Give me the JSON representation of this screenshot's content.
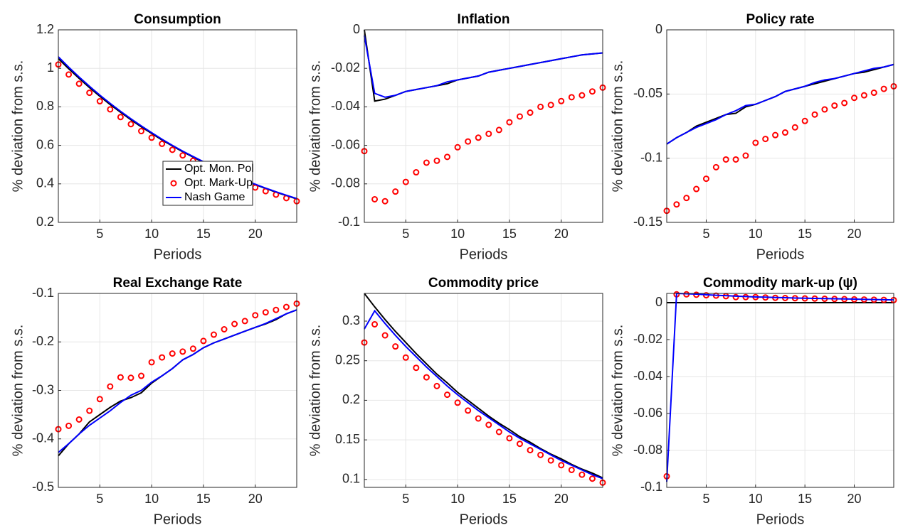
{
  "chart_data": [
    {
      "type": "line",
      "title": "Consumption",
      "xlabel": "Periods",
      "ylabel": "% deviation from s.s.",
      "x": [
        1,
        2,
        3,
        4,
        5,
        6,
        7,
        8,
        9,
        10,
        11,
        12,
        13,
        14,
        15,
        16,
        17,
        18,
        19,
        20,
        21,
        22,
        23,
        24
      ],
      "xlim": [
        1,
        24
      ],
      "xticks": [
        5,
        10,
        15,
        20
      ],
      "ylim": [
        0.2,
        1.2
      ],
      "yticks": [
        0.2,
        0.4,
        0.6,
        0.8,
        1,
        1.2
      ],
      "grid": true,
      "legend": "lower right",
      "series": [
        {
          "name": "Opt. Mon. Pol",
          "color": "#000000",
          "mode": "line",
          "values": [
            1.05,
            0.998,
            0.948,
            0.9,
            0.855,
            0.812,
            0.772,
            0.733,
            0.696,
            0.662,
            0.628,
            0.597,
            0.567,
            0.539,
            0.512,
            0.486,
            0.462,
            0.439,
            0.417,
            0.396,
            0.376,
            0.357,
            0.339,
            0.322
          ]
        },
        {
          "name": "Opt. Mark-Up",
          "color": "#ff0000",
          "mode": "markers",
          "values": [
            1.02,
            0.968,
            0.92,
            0.873,
            0.829,
            0.787,
            0.747,
            0.71,
            0.674,
            0.64,
            0.608,
            0.577,
            0.548,
            0.52,
            0.494,
            0.469,
            0.445,
            0.423,
            0.401,
            0.381,
            0.362,
            0.344,
            0.326,
            0.31
          ]
        },
        {
          "name": "Nash Game",
          "color": "#0000ff",
          "mode": "line",
          "values": [
            1.06,
            1.006,
            0.955,
            0.907,
            0.861,
            0.818,
            0.777,
            0.738,
            0.701,
            0.666,
            0.632,
            0.6,
            0.57,
            0.542,
            0.515,
            0.489,
            0.465,
            0.441,
            0.419,
            0.398,
            0.378,
            0.359,
            0.341,
            0.324
          ]
        }
      ]
    },
    {
      "type": "line",
      "title": "Inflation",
      "xlabel": "Periods",
      "ylabel": "% deviation from s.s.",
      "x": [
        1,
        2,
        3,
        4,
        5,
        6,
        7,
        8,
        9,
        10,
        11,
        12,
        13,
        14,
        15,
        16,
        17,
        18,
        19,
        20,
        21,
        22,
        23,
        24
      ],
      "xlim": [
        1,
        24
      ],
      "xticks": [
        5,
        10,
        15,
        20
      ],
      "ylim": [
        -0.1,
        0
      ],
      "yticks": [
        -0.1,
        -0.08,
        -0.06,
        -0.04,
        -0.02,
        0
      ],
      "grid": true,
      "series": [
        {
          "color": "#000000",
          "mode": "line",
          "values": [
            0,
            -0.037,
            -0.036,
            -0.034,
            -0.032,
            -0.031,
            -0.03,
            -0.029,
            -0.028,
            -0.026,
            -0.025,
            -0.024,
            -0.022,
            -0.021,
            -0.02,
            -0.019,
            -0.018,
            -0.017,
            -0.016,
            -0.015,
            -0.014,
            -0.013,
            -0.0125,
            -0.012
          ]
        },
        {
          "color": "#ff0000",
          "mode": "markers",
          "values": [
            -0.063,
            -0.088,
            -0.089,
            -0.084,
            -0.079,
            -0.074,
            -0.069,
            -0.068,
            -0.066,
            -0.061,
            -0.058,
            -0.056,
            -0.054,
            -0.052,
            -0.048,
            -0.045,
            -0.043,
            -0.04,
            -0.039,
            -0.037,
            -0.035,
            -0.034,
            -0.032,
            -0.03
          ]
        },
        {
          "color": "#0000ff",
          "mode": "line",
          "values": [
            -0.003,
            -0.033,
            -0.035,
            -0.034,
            -0.032,
            -0.031,
            -0.03,
            -0.029,
            -0.027,
            -0.026,
            -0.025,
            -0.024,
            -0.022,
            -0.021,
            -0.02,
            -0.019,
            -0.018,
            -0.017,
            -0.016,
            -0.015,
            -0.014,
            -0.013,
            -0.0125,
            -0.012
          ]
        }
      ]
    },
    {
      "type": "line",
      "title": "Policy rate",
      "xlabel": "Periods",
      "ylabel": "% deviation from s.s.",
      "x": [
        1,
        2,
        3,
        4,
        5,
        6,
        7,
        8,
        9,
        10,
        11,
        12,
        13,
        14,
        15,
        16,
        17,
        18,
        19,
        20,
        21,
        22,
        23,
        24
      ],
      "xlim": [
        1,
        24
      ],
      "xticks": [
        5,
        10,
        15,
        20
      ],
      "ylim": [
        -0.15,
        0
      ],
      "yticks": [
        -0.15,
        -0.1,
        -0.05,
        0
      ],
      "grid": true,
      "series": [
        {
          "color": "#000000",
          "mode": "line",
          "values": [
            -0.089,
            -0.084,
            -0.08,
            -0.075,
            -0.072,
            -0.069,
            -0.066,
            -0.065,
            -0.06,
            -0.058,
            -0.055,
            -0.052,
            -0.048,
            -0.046,
            -0.044,
            -0.042,
            -0.04,
            -0.038,
            -0.036,
            -0.034,
            -0.033,
            -0.031,
            -0.029,
            -0.027
          ]
        },
        {
          "color": "#ff0000",
          "mode": "markers",
          "values": [
            -0.141,
            -0.136,
            -0.131,
            -0.124,
            -0.116,
            -0.107,
            -0.101,
            -0.101,
            -0.098,
            -0.088,
            -0.085,
            -0.082,
            -0.08,
            -0.076,
            -0.071,
            -0.066,
            -0.062,
            -0.059,
            -0.057,
            -0.053,
            -0.051,
            -0.049,
            -0.046,
            -0.044
          ]
        },
        {
          "color": "#0000ff",
          "mode": "line",
          "values": [
            -0.089,
            -0.084,
            -0.08,
            -0.076,
            -0.073,
            -0.07,
            -0.066,
            -0.063,
            -0.059,
            -0.058,
            -0.055,
            -0.052,
            -0.048,
            -0.046,
            -0.044,
            -0.041,
            -0.039,
            -0.038,
            -0.036,
            -0.034,
            -0.032,
            -0.03,
            -0.029,
            -0.027
          ]
        }
      ]
    },
    {
      "type": "line",
      "title": "Real Exchange Rate",
      "xlabel": "Periods",
      "ylabel": "% deviation from s.s.",
      "x": [
        1,
        2,
        3,
        4,
        5,
        6,
        7,
        8,
        9,
        10,
        11,
        12,
        13,
        14,
        15,
        16,
        17,
        18,
        19,
        20,
        21,
        22,
        23,
        24
      ],
      "xlim": [
        1,
        24
      ],
      "xticks": [
        5,
        10,
        15,
        20
      ],
      "ylim": [
        -0.5,
        -0.1
      ],
      "yticks": [
        -0.5,
        -0.4,
        -0.3,
        -0.2,
        -0.1
      ],
      "grid": true,
      "series": [
        {
          "color": "#000000",
          "mode": "line",
          "values": [
            -0.435,
            -0.41,
            -0.39,
            -0.365,
            -0.35,
            -0.335,
            -0.322,
            -0.315,
            -0.305,
            -0.285,
            -0.27,
            -0.255,
            -0.237,
            -0.226,
            -0.212,
            -0.202,
            -0.194,
            -0.186,
            -0.178,
            -0.17,
            -0.163,
            -0.154,
            -0.142,
            -0.134
          ]
        },
        {
          "color": "#ff0000",
          "mode": "markers",
          "values": [
            -0.38,
            -0.373,
            -0.36,
            -0.342,
            -0.318,
            -0.292,
            -0.273,
            -0.274,
            -0.27,
            -0.242,
            -0.232,
            -0.224,
            -0.22,
            -0.214,
            -0.198,
            -0.185,
            -0.174,
            -0.163,
            -0.157,
            -0.145,
            -0.139,
            -0.134,
            -0.128,
            -0.121
          ]
        },
        {
          "color": "#0000ff",
          "mode": "line",
          "values": [
            -0.428,
            -0.41,
            -0.39,
            -0.372,
            -0.357,
            -0.342,
            -0.325,
            -0.31,
            -0.3,
            -0.283,
            -0.27,
            -0.255,
            -0.237,
            -0.226,
            -0.212,
            -0.202,
            -0.194,
            -0.186,
            -0.178,
            -0.17,
            -0.162,
            -0.152,
            -0.142,
            -0.134
          ]
        }
      ]
    },
    {
      "type": "line",
      "title": "Commodity price",
      "xlabel": "Periods",
      "ylabel": "% deviation from s.s.",
      "x": [
        1,
        2,
        3,
        4,
        5,
        6,
        7,
        8,
        9,
        10,
        11,
        12,
        13,
        14,
        15,
        16,
        17,
        18,
        19,
        20,
        21,
        22,
        23,
        24
      ],
      "xlim": [
        1,
        24
      ],
      "xticks": [
        5,
        10,
        15,
        20
      ],
      "ylim": [
        0.09,
        0.335
      ],
      "yticks": [
        0.1,
        0.15,
        0.2,
        0.25,
        0.3
      ],
      "grid": true,
      "series": [
        {
          "color": "#000000",
          "mode": "line",
          "values": [
            0.335,
            0.318,
            0.302,
            0.287,
            0.273,
            0.259,
            0.246,
            0.233,
            0.222,
            0.21,
            0.2,
            0.19,
            0.18,
            0.171,
            0.163,
            0.154,
            0.147,
            0.139,
            0.132,
            0.126,
            0.119,
            0.113,
            0.108,
            0.102
          ]
        },
        {
          "color": "#ff0000",
          "mode": "markers",
          "values": [
            0.273,
            0.296,
            0.282,
            0.268,
            0.254,
            0.241,
            0.229,
            0.218,
            0.207,
            0.197,
            0.187,
            0.177,
            0.169,
            0.16,
            0.152,
            0.145,
            0.137,
            0.131,
            0.124,
            0.118,
            0.112,
            0.106,
            0.101,
            0.096
          ]
        },
        {
          "color": "#0000ff",
          "mode": "line",
          "values": [
            0.29,
            0.313,
            0.297,
            0.282,
            0.268,
            0.255,
            0.242,
            0.23,
            0.218,
            0.207,
            0.197,
            0.187,
            0.178,
            0.169,
            0.16,
            0.152,
            0.145,
            0.138,
            0.131,
            0.124,
            0.118,
            0.112,
            0.106,
            0.101
          ]
        }
      ]
    },
    {
      "type": "line",
      "title": "Commodity mark-up (ψ)",
      "xlabel": "Periods",
      "ylabel": "% deviation from s.s.",
      "x": [
        1,
        2,
        3,
        4,
        5,
        6,
        7,
        8,
        9,
        10,
        11,
        12,
        13,
        14,
        15,
        16,
        17,
        18,
        19,
        20,
        21,
        22,
        23,
        24
      ],
      "xlim": [
        1,
        24
      ],
      "xticks": [
        5,
        10,
        15,
        20
      ],
      "ylim": [
        -0.1,
        0.005
      ],
      "yticks": [
        -0.1,
        -0.08,
        -0.06,
        -0.04,
        -0.02,
        0
      ],
      "grid": true,
      "series": [
        {
          "color": "#000000",
          "mode": "line",
          "values": [
            0,
            0,
            0,
            0,
            0,
            0,
            0,
            0,
            0,
            0,
            0,
            0,
            0,
            0,
            0,
            0,
            0,
            0,
            0,
            0,
            0,
            0,
            0,
            0
          ]
        },
        {
          "color": "#ff0000",
          "mode": "markers",
          "values": [
            -0.094,
            0.0045,
            0.0045,
            0.0043,
            0.004,
            0.0038,
            0.0035,
            0.003,
            0.003,
            0.003,
            0.0028,
            0.0026,
            0.0025,
            0.0024,
            0.0023,
            0.0022,
            0.0021,
            0.002,
            0.0019,
            0.0018,
            0.0017,
            0.0016,
            0.0015,
            0.0014
          ]
        },
        {
          "color": "#0000ff",
          "mode": "line",
          "values": [
            -0.097,
            0.005,
            0.0048,
            0.0046,
            0.0043,
            0.004,
            0.0038,
            0.0035,
            0.0033,
            0.0031,
            0.003,
            0.0028,
            0.0027,
            0.0025,
            0.0024,
            0.0023,
            0.0022,
            0.0021,
            0.002,
            0.0019,
            0.0018,
            0.0017,
            0.0016,
            0.0015
          ]
        }
      ]
    }
  ]
}
